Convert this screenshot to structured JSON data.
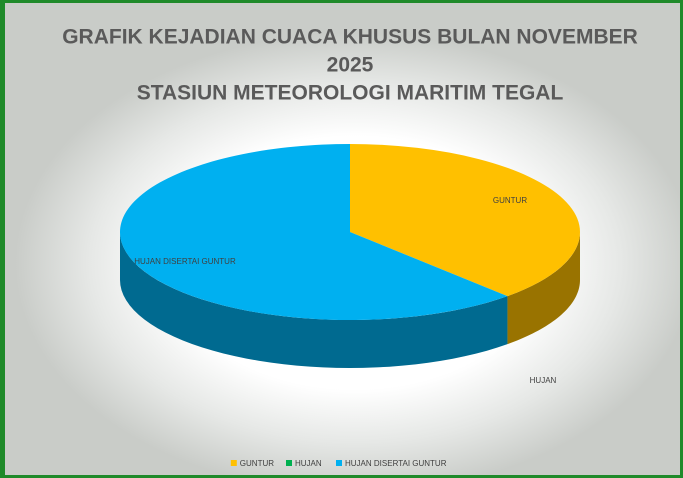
{
  "chart_data": {
    "type": "pie3d",
    "title": [
      "GRAFIK KEJADIAN CUACA KHUSUS BULAN NOVEMBER",
      "2025",
      "STASIUN METEOROLOGI MARITIM TEGAL"
    ],
    "categories": [
      "GUNTUR",
      "HUJAN",
      "HUJAN DISERTAI GUNTUR"
    ],
    "values": [
      38,
      0,
      62
    ],
    "colors": [
      "#FFC000",
      "#00B050",
      "#00B0F0"
    ],
    "legend": "bottom"
  }
}
